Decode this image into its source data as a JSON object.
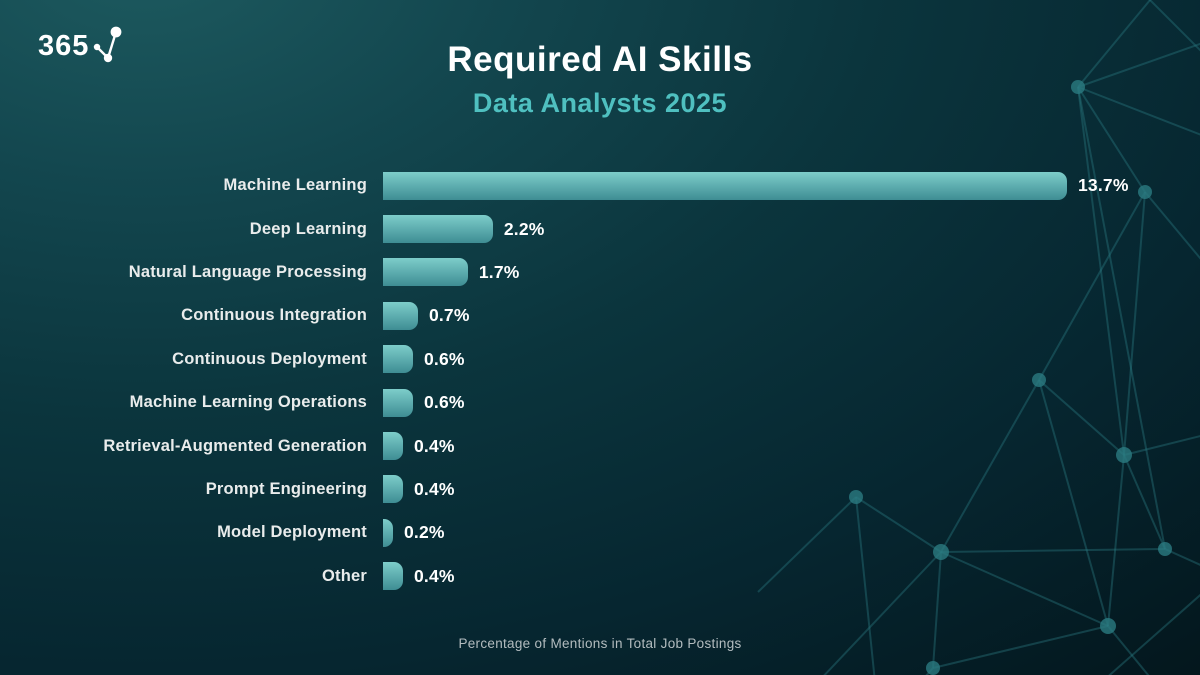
{
  "logo": {
    "text": "365"
  },
  "header": {
    "title": "Required AI Skills",
    "subtitle": "Data Analysts 2025"
  },
  "chart_data": {
    "type": "bar",
    "orientation": "horizontal",
    "title": "Required AI Skills",
    "subtitle": "Data Analysts 2025",
    "categories": [
      "Machine Learning",
      "Deep Learning",
      "Natural Language Processing",
      "Continuous Integration",
      "Continuous Deployment",
      "Machine Learning Operations",
      "Retrieval-Augmented Generation",
      "Prompt Engineering",
      "Model Deployment",
      "Other"
    ],
    "values": [
      13.7,
      2.2,
      1.7,
      0.7,
      0.6,
      0.6,
      0.4,
      0.4,
      0.2,
      0.4
    ],
    "value_labels": [
      "13.7%",
      "2.2%",
      "1.7%",
      "0.7%",
      "0.6%",
      "0.6%",
      "0.4%",
      "0.4%",
      "0.2%",
      "0.4%"
    ],
    "xlabel": "Percentage of Mentions in Total Job Postings",
    "xlim": [
      0,
      13.7
    ],
    "grid": false,
    "legend": false,
    "bar_color_top": "#7dcdca",
    "bar_color_bottom": "#3e8d93"
  },
  "footer": {
    "caption": "Percentage of Mentions in Total Job Postings"
  },
  "colors": {
    "title": "#ffffff",
    "subtitle": "#4fc0c0",
    "category_label": "#e9ecec",
    "value_label": "#ffffff",
    "caption": "#b3bcbf",
    "network": "#2a7a81",
    "background_light": "#1d5a5f",
    "background_dark": "#021014"
  }
}
